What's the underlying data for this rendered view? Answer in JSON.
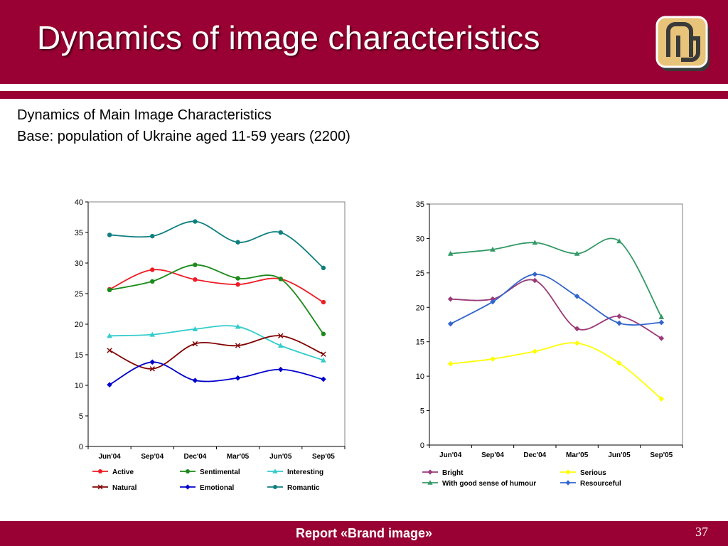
{
  "slide": {
    "title": "Dynamics of image characteristics",
    "subtitle_line1": "Dynamics of Main Image Characteristics",
    "subtitle_line2": "Base: population of Ukraine aged 11-59 years (2200)",
    "footer": "Report «Brand image»",
    "page_number": "37",
    "colors": {
      "brand": "#990033",
      "white": "#ffffff"
    }
  },
  "chart_data": [
    {
      "type": "line",
      "categories": [
        "Jun'04",
        "Sep'04",
        "Dec'04",
        "Mar'05",
        "Jun'05",
        "Sep'05"
      ],
      "ylim": [
        0,
        40
      ],
      "yticks": [
        0,
        5,
        10,
        15,
        20,
        25,
        30,
        35,
        40
      ],
      "grid": false,
      "legend": "bottom",
      "series": [
        {
          "name": "Active",
          "color": "#ee1c25",
          "marker": "circle",
          "values": [
            25.7,
            28.9,
            27.3,
            26.5,
            27.4,
            23.6
          ]
        },
        {
          "name": "Sentimental",
          "color": "#1a8a1a",
          "marker": "circle",
          "values": [
            25.6,
            27.0,
            29.7,
            27.5,
            27.4,
            18.4
          ]
        },
        {
          "name": "Interesting",
          "color": "#33cccc",
          "marker": "triangle",
          "values": [
            18.1,
            18.3,
            19.2,
            19.6,
            16.5,
            14.1
          ]
        },
        {
          "name": "Natural",
          "color": "#800000",
          "marker": "x",
          "values": [
            15.7,
            12.7,
            16.8,
            16.5,
            18.1,
            15.1
          ]
        },
        {
          "name": "Emotional",
          "color": "#0000cc",
          "marker": "diamond",
          "values": [
            10.1,
            13.8,
            10.8,
            11.2,
            12.6,
            11.0
          ]
        },
        {
          "name": "Romantic",
          "color": "#0f7f7f",
          "marker": "circle",
          "values": [
            34.6,
            34.4,
            36.8,
            33.4,
            35.0,
            29.2
          ]
        }
      ]
    },
    {
      "type": "line",
      "categories": [
        "Jun'04",
        "Sep'04",
        "Dec'04",
        "Mar'05",
        "Jun'05",
        "Sep'05"
      ],
      "ylim": [
        0,
        35
      ],
      "yticks": [
        0,
        5,
        10,
        15,
        20,
        25,
        30,
        35
      ],
      "grid": false,
      "legend": "bottom",
      "series": [
        {
          "name": "Bright",
          "color": "#9b3a78",
          "marker": "diamond",
          "values": [
            21.2,
            21.2,
            23.9,
            16.9,
            18.7,
            15.5
          ]
        },
        {
          "name": "Serious",
          "color": "#ffff00",
          "marker": "diamond",
          "values": [
            11.8,
            12.5,
            13.6,
            14.8,
            11.9,
            6.7
          ]
        },
        {
          "name": "With good sense of humour",
          "color": "#339966",
          "marker": "triangle",
          "values": [
            27.8,
            28.4,
            29.4,
            27.8,
            29.6,
            18.6
          ]
        },
        {
          "name": "Resourceful",
          "color": "#3366cc",
          "marker": "diamond",
          "values": [
            17.6,
            20.8,
            24.8,
            21.6,
            17.7,
            17.8
          ]
        }
      ]
    }
  ]
}
